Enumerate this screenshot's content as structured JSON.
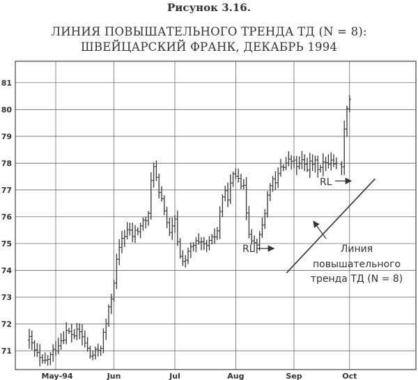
{
  "figure_label": "Рисунок 3.16.",
  "title_line1": "ЛИНИЯ ПОВЫШАТЕЛЬНОГО ТРЕНДА ТД (N = 8):",
  "title_line2": "ШВЕЙЦАРСКИЙ ФРАНК, ДЕКАБРЬ 1994",
  "chart_data": {
    "type": "bar",
    "subtype": "ohlc-price-bars",
    "grid": true,
    "ylim": [
      70.3,
      81.8
    ],
    "yticks": [
      71,
      72,
      73,
      74,
      75,
      76,
      77,
      78,
      79,
      80,
      81
    ],
    "x_range_trading_days": [
      0,
      112
    ],
    "x_ticks": [
      {
        "label": "May-94",
        "day": 10
      },
      {
        "label": "Jun",
        "day": 32
      },
      {
        "label": "Jul",
        "day": 55
      },
      {
        "label": "Aug",
        "day": 78
      },
      {
        "label": "Sep",
        "day": 100
      },
      {
        "label": "Oct",
        "day": 121
      }
    ],
    "close_path": [
      [
        0,
        71.4
      ],
      [
        2,
        71.0
      ],
      [
        5,
        70.5
      ],
      [
        8,
        70.8
      ],
      [
        11,
        71.3
      ],
      [
        14,
        71.7
      ],
      [
        17,
        71.6
      ],
      [
        19,
        71.7
      ],
      [
        21,
        71.3
      ],
      [
        23,
        70.8
      ],
      [
        25,
        70.9
      ],
      [
        27,
        71.2
      ],
      [
        29,
        72.0
      ],
      [
        31,
        73.0
      ],
      [
        33,
        74.3
      ],
      [
        35,
        75.2
      ],
      [
        37,
        75.5
      ],
      [
        39,
        75.3
      ],
      [
        41,
        75.5
      ],
      [
        43,
        75.8
      ],
      [
        45,
        76.0
      ],
      [
        46,
        77.3
      ],
      [
        47,
        78.0
      ],
      [
        49,
        76.8
      ],
      [
        51,
        76.3
      ],
      [
        53,
        75.3
      ],
      [
        55,
        75.8
      ],
      [
        57,
        74.5
      ],
      [
        59,
        74.4
      ],
      [
        61,
        74.8
      ],
      [
        63,
        75.0
      ],
      [
        65,
        74.9
      ],
      [
        67,
        74.9
      ],
      [
        69,
        75.1
      ],
      [
        71,
        75.5
      ],
      [
        73,
        76.8
      ],
      [
        75,
        76.8
      ],
      [
        77,
        77.5
      ],
      [
        79,
        77.6
      ],
      [
        81,
        77.0
      ],
      [
        83,
        75.5
      ],
      [
        85,
        75.0
      ],
      [
        87,
        75.2
      ],
      [
        89,
        76.2
      ],
      [
        91,
        77.3
      ],
      [
        93,
        77.2
      ],
      [
        95,
        77.9
      ],
      [
        97,
        78.0
      ],
      [
        99,
        78.1
      ],
      [
        101,
        77.9
      ],
      [
        103,
        78.0
      ],
      [
        105,
        77.9
      ],
      [
        107,
        78.0
      ],
      [
        109,
        77.9
      ],
      [
        111,
        78.0
      ],
      [
        112,
        77.9
      ],
      [
        114,
        78.2
      ],
      [
        116,
        77.9
      ],
      [
        118,
        78.0
      ],
      [
        119,
        79.2
      ],
      [
        120,
        80.2
      ],
      [
        121,
        80.4
      ]
    ],
    "trend_line": {
      "label": "RL",
      "from": [
        79,
        73.8
      ],
      "to": [
        113,
        77.6
      ]
    },
    "annotations": [
      {
        "text": "RL",
        "points_to": [
          86,
          74.6
        ]
      },
      {
        "text": "RL",
        "points_to": [
          112,
          77.5
        ]
      }
    ],
    "legend_text": [
      "Линия",
      "повышательного",
      "тренда ТД (N = 8)"
    ]
  }
}
